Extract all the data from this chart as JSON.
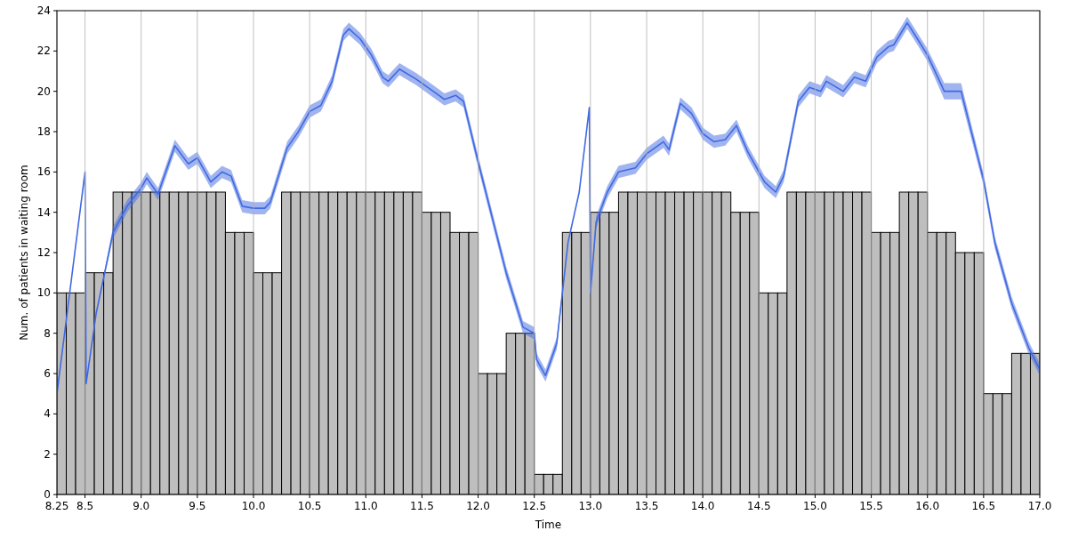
{
  "chart_data": {
    "type": "histogram",
    "xlabel": "Time",
    "ylabel": "Num. of patients in waiting room",
    "xlim": [
      8.25,
      17
    ],
    "xticks": [
      8.25,
      8.5,
      {
        "value": 9,
        "label": "9.0"
      },
      9.5,
      {
        "value": 10,
        "label": "10.0"
      },
      10.5,
      {
        "value": 11,
        "label": "11.0"
      },
      11.5,
      {
        "value": 12,
        "label": "12.0"
      },
      12.5,
      {
        "value": 13,
        "label": "13.0"
      },
      13.5,
      {
        "value": 14,
        "label": "14.0"
      },
      14.5,
      {
        "value": 15,
        "label": "15.0"
      },
      15.5,
      {
        "value": 16,
        "label": "16.0"
      },
      16.5,
      {
        "value": 17,
        "label": "17.0"
      }
    ],
    "ylim": [
      0,
      24
    ],
    "yticks": [
      0,
      2,
      4,
      6,
      8,
      10,
      12,
      14,
      16,
      18,
      20,
      22,
      24
    ],
    "grid": "x",
    "bins": [
      8.25,
      8.3333,
      8.4167,
      8.5,
      8.5833,
      8.6667,
      8.75,
      8.8333,
      8.9167,
      9.0,
      9.0833,
      9.1667,
      9.25,
      9.3333,
      9.4167,
      9.5,
      9.5833,
      9.6667,
      9.75,
      9.8333,
      9.9167,
      10.0,
      10.0833,
      10.1667,
      10.25,
      10.3333,
      10.4167,
      10.5,
      10.5833,
      10.6667,
      10.75,
      10.8333,
      10.9167,
      11.0,
      11.0833,
      11.1667,
      11.25,
      11.3333,
      11.4167,
      11.5,
      11.5833,
      11.6667,
      11.75,
      11.8333,
      11.9167,
      12.0,
      12.0833,
      12.1667,
      12.25,
      12.3333,
      12.4167,
      12.5,
      12.5833,
      12.6667,
      12.75,
      12.8333,
      12.9167,
      13.0,
      13.0833,
      13.1667,
      13.25,
      13.3333,
      13.4167,
      13.5,
      13.5833,
      13.6667,
      13.75,
      13.8333,
      13.9167,
      14.0,
      14.0833,
      14.1667,
      14.25,
      14.3333,
      14.4167,
      14.5,
      14.5833,
      14.6667,
      14.75,
      14.8333,
      14.9167,
      15.0,
      15.0833,
      15.1667,
      15.25,
      15.3333,
      15.4167,
      15.5,
      15.5833,
      15.6667,
      15.75,
      15.8333,
      15.9167,
      16.0,
      16.0833,
      16.1667,
      16.25,
      16.3333,
      16.4167,
      16.5,
      16.5833,
      16.6667,
      16.75,
      16.8333,
      16.9167,
      17.0
    ],
    "series": [
      {
        "color": "#bebebe",
        "values": [
          10,
          10,
          10,
          11,
          11,
          11,
          15,
          15,
          15,
          15,
          15,
          15,
          15,
          15,
          15,
          15,
          15,
          15,
          13,
          13,
          13,
          11,
          11,
          11,
          15,
          15,
          15,
          15,
          15,
          15,
          15,
          15,
          15,
          15,
          15,
          15,
          15,
          15,
          15,
          14,
          14,
          14,
          13,
          13,
          13,
          6,
          6,
          6,
          8,
          8,
          8,
          1,
          1,
          1,
          13,
          13,
          13,
          14,
          14,
          14,
          15,
          15,
          15,
          15,
          15,
          15,
          15,
          15,
          15,
          15,
          15,
          15,
          14,
          14,
          14,
          10,
          10,
          10,
          15,
          15,
          15,
          15,
          15,
          15,
          15,
          15,
          15,
          13,
          13,
          13,
          15,
          15,
          15,
          13,
          13,
          13,
          12,
          12,
          12,
          5,
          5,
          5,
          7,
          7,
          7
        ]
      },
      {
        "type": "line",
        "color": "#4169e1",
        "x": [
          8.25,
          8.5,
          8.51,
          8.6,
          8.75,
          8.875,
          9.0,
          9.05,
          9.15,
          9.3,
          9.42,
          9.5,
          9.62,
          9.72,
          9.8,
          9.9,
          10.0,
          10.1,
          10.15,
          10.3,
          10.4,
          10.5,
          10.6,
          10.7,
          10.8,
          10.85,
          10.95,
          11.05,
          11.15,
          11.2,
          11.3,
          11.45,
          11.6,
          11.7,
          11.8,
          11.87,
          12.0,
          12.25,
          12.4,
          12.5,
          12.52,
          12.6,
          12.7,
          12.8,
          12.9,
          12.99,
          13.0,
          13.05,
          13.15,
          13.25,
          13.4,
          13.5,
          13.65,
          13.7,
          13.8,
          13.9,
          14.0,
          14.1,
          14.2,
          14.3,
          14.4,
          14.55,
          14.65,
          14.72,
          14.85,
          14.95,
          15.05,
          15.1,
          15.25,
          15.35,
          15.45,
          15.55,
          15.65,
          15.7,
          15.82,
          15.9,
          16.0,
          16.15,
          16.25,
          16.3,
          16.5,
          16.6,
          16.75,
          16.9,
          17.0
        ],
        "values": [
          5.0,
          16.0,
          5.5,
          9.0,
          13.0,
          14.3,
          15.2,
          15.7,
          14.9,
          17.3,
          16.4,
          16.7,
          15.5,
          16.0,
          15.8,
          14.3,
          14.2,
          14.2,
          14.5,
          17.2,
          18.0,
          19.0,
          19.3,
          20.5,
          22.8,
          23.1,
          22.6,
          21.8,
          20.7,
          20.5,
          21.1,
          20.6,
          20.0,
          19.6,
          19.8,
          19.5,
          16.5,
          11.0,
          8.3,
          8.0,
          6.7,
          5.9,
          7.5,
          12.5,
          15.0,
          19.2,
          10.0,
          13.5,
          15.0,
          16.0,
          16.2,
          16.9,
          17.5,
          17.1,
          19.4,
          18.9,
          17.9,
          17.5,
          17.6,
          18.3,
          17.0,
          15.5,
          15.0,
          15.8,
          19.5,
          20.2,
          20.0,
          20.5,
          20.0,
          20.7,
          20.5,
          21.7,
          22.2,
          22.3,
          23.4,
          22.7,
          21.8,
          20.0,
          20.0,
          20.0,
          15.6,
          12.5,
          9.5,
          7.3,
          6.2
        ],
        "lower": [
          5.0,
          16.0,
          5.5,
          9.0,
          12.7,
          14.0,
          14.9,
          15.4,
          14.6,
          17.0,
          16.1,
          16.4,
          15.2,
          15.7,
          15.5,
          14.0,
          13.9,
          13.9,
          14.2,
          16.9,
          17.7,
          18.7,
          19.0,
          20.2,
          22.5,
          22.8,
          22.3,
          21.5,
          20.4,
          20.2,
          20.8,
          20.3,
          19.7,
          19.3,
          19.5,
          19.2,
          16.2,
          10.7,
          8.0,
          7.7,
          6.4,
          5.6,
          7.2,
          12.5,
          15.0,
          19.2,
          10.0,
          13.2,
          14.7,
          15.7,
          15.9,
          16.6,
          17.2,
          16.8,
          19.1,
          18.6,
          17.6,
          17.2,
          17.3,
          18.0,
          16.7,
          15.2,
          14.7,
          15.5,
          19.2,
          19.9,
          19.7,
          20.2,
          19.7,
          20.4,
          20.2,
          21.4,
          21.9,
          22.0,
          23.1,
          22.4,
          21.5,
          19.6,
          19.6,
          19.6,
          15.3,
          12.2,
          9.2,
          7.0,
          5.9
        ],
        "upper": [
          5.0,
          16.0,
          5.5,
          9.0,
          13.3,
          14.6,
          15.5,
          16.0,
          15.2,
          17.6,
          16.7,
          17.0,
          15.8,
          16.3,
          16.1,
          14.6,
          14.5,
          14.5,
          14.8,
          17.5,
          18.3,
          19.3,
          19.6,
          20.8,
          23.1,
          23.4,
          22.9,
          22.1,
          21.0,
          20.8,
          21.4,
          20.9,
          20.3,
          19.9,
          20.1,
          19.8,
          16.8,
          11.3,
          8.6,
          8.3,
          7.0,
          6.2,
          7.8,
          12.5,
          15.0,
          19.2,
          10.0,
          13.8,
          15.3,
          16.3,
          16.5,
          17.2,
          17.8,
          17.4,
          19.7,
          19.2,
          18.2,
          17.8,
          17.9,
          18.6,
          17.3,
          15.8,
          15.3,
          16.1,
          19.8,
          20.5,
          20.3,
          20.8,
          20.3,
          21.0,
          20.8,
          22.0,
          22.5,
          22.6,
          23.7,
          23.0,
          22.1,
          20.4,
          20.4,
          20.4,
          15.9,
          12.8,
          9.8,
          7.6,
          6.5
        ]
      }
    ]
  }
}
